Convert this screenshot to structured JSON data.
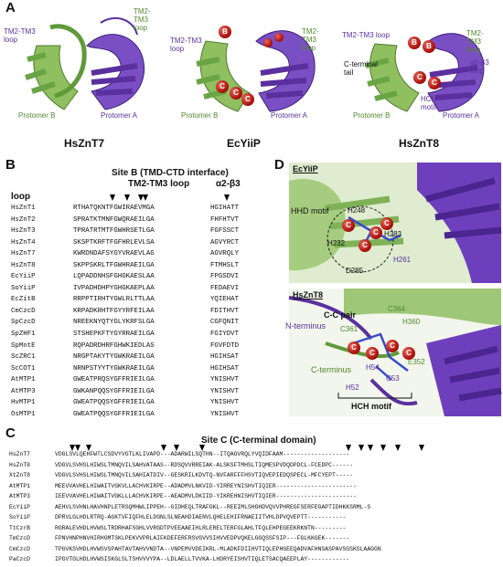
{
  "panels": {
    "A": "A",
    "B": "B",
    "C": "C",
    "D": "D"
  },
  "panelA": {
    "structures": [
      {
        "name": "HsZnT7",
        "labels": {
          "tm23_left": "TM2-TM3\nloop",
          "tm23_right": "TM2-\nTM3\nloop",
          "protomer_b": "Protomer B",
          "protomer_a": "Protomer A"
        }
      },
      {
        "name": "EcYiiP",
        "labels": {
          "tm23_left": "TM2-TM3\nloop",
          "tm23_right": "TM2-\nTM3\nloop",
          "protomer_b": "Protomer B",
          "protomer_a": "Protomer A"
        }
      },
      {
        "name": "HsZnT8",
        "labels": {
          "tm23_left": "TM2-TM3 loop",
          "tm23_right": "TM2-\nTM3\nloop",
          "a2b3": "α2-β3\nloop",
          "cterm": "C-terminal\ntail",
          "hch": "HCH\nmotif",
          "protomer_b": "Protomer B",
          "protomer_a": "Protomer A"
        }
      }
    ]
  },
  "panelB": {
    "title": "Site B (TMD-CTD interface)",
    "subtitle": "TM2-TM3 loop",
    "col_loop": "loop",
    "col_a2b3": "α2-β3",
    "rows": [
      {
        "name": "HsZnT1",
        "seq": "RTHATQKNTFGWIRAEVMGA",
        "tail": "HGIHATT"
      },
      {
        "name": "HsZnT2",
        "seq": "SPRATKTMNFGWQRAEILGA",
        "tail": "FHFHTVT"
      },
      {
        "name": "HsZnT3",
        "seq": "TPRATRTMTFGWHRSETLGA",
        "tail": "FGFSSCT"
      },
      {
        "name": "HsZnT4",
        "seq": "SKSPTKRFTFGFHRLEVLSA",
        "tail": "AGVYRCT"
      },
      {
        "name": "HsZnT7",
        "seq": "KWRDNDAFSYGYVRAEVLAG",
        "tail": "AGVRQLY"
      },
      {
        "name": "HsZnT8",
        "seq": "SKPPSKRLTFGWHRAEILGA",
        "tail": "FTMHSLT"
      },
      {
        "name": "EcYiiP",
        "seq": "LQPADDNHSFGHGKAESLAA",
        "tail": "FPGSDVI"
      },
      {
        "name": "SoYiiP",
        "seq": "IVPADHDHPYGHGKAEPLAA",
        "tail": "FEDAEVI"
      },
      {
        "name": "EcZitB",
        "seq": "RRPPTIRHTYGWLRLTTLAA",
        "tail": "YQIEHAT"
      },
      {
        "name": "CmCzcD",
        "seq": "KRPADKRHTFGYYRFEILAA",
        "tail": "FDITHVT"
      },
      {
        "name": "SpCzcD",
        "seq": "NREEKNYQTYGLYKRFSLGA",
        "tail": "CGFQNIT"
      },
      {
        "name": "SpZHF1",
        "seq": "STSHEPKFTYGYRRAEILGA",
        "tail": "FGIYDVT"
      },
      {
        "name": "SpMntE",
        "seq": "RQPADRDHRFGHWKIEDLAS",
        "tail": "FGVFDTD"
      },
      {
        "name": "ScZRC1",
        "seq": "NRGPTAKYTYGWKRAEILGA",
        "tail": "HGIHSAT"
      },
      {
        "name": "ScCOT1",
        "seq": "NRNPSTYYTYGWKRAEILGA",
        "tail": "HGIHSAT"
      },
      {
        "name": "AtMTP1",
        "seq": "GWEATPRQSYGFFRIEILGA",
        "tail": "YNISHVT"
      },
      {
        "name": "AtMTP3",
        "seq": "GWKANPQQSYGFFRIEILGA",
        "tail": "YNISHVT"
      },
      {
        "name": "HvMTP1",
        "seq": "GWEATPQQSYGFFRIEILGA",
        "tail": "YNISHVT"
      },
      {
        "name": "OsMTP1",
        "seq": "GWEATPQQSYGFFRIEILGA",
        "tail": "YNISHVT"
      }
    ]
  },
  "panelC": {
    "title": "Site C (C-terminal domain)",
    "rows": [
      {
        "name": "HsZnT7",
        "seq": "VDGLSVLQEHFWTLCSDVYVGTLKLIVAPD---ADARWILSQTHN--ITQAGVRQLYVQIDFAAM-------------------"
      },
      {
        "name": "HsZnT8",
        "seq": "VDGVLSVHSLHIWSLTMNQVILSAHVATAAS--RDSQVVRREIAK-ALSKSFTMHSLTIQMESPVDQDPDCL-FCEDPC------"
      },
      {
        "name": "XtZnT8",
        "seq": "VDGVLSVHSLHIWSLTMNQVILSAHIATDIV--GESKRILKDVTQ-NVFARFFFHSVTIQVEPIEDQSPECL-MFCYEPT-----"
      },
      {
        "name": "AtMTP1",
        "seq": "MEEVVAVHELHIWAITVGKVLLACHVKIRPE--ADADMVLNKVID-YIRREYNISHVTIQIER-----------------------"
      },
      {
        "name": "AtMTP3",
        "seq": "IEEVVAVHELHIWAITVGKLLLACHVKIRPE--AEADMVLDKIID-YIKREHNISHVTIQIER-----------------------"
      },
      {
        "name": "EcYiiP",
        "seq": "AEHVLSVHNLHAVHNPLETRSQMHWLIPPEH--GIDHEQLTRAFGKL--REEIMLSHGHDVQVVPHREGFSERFEGAPTIDHKKSRML-S"
      },
      {
        "name": "SoYiiP",
        "seq": "DPRVLGLHDLRTRQ-AGKTVFIQFHLELDGNLSLNEAHDIAENVLQHELEHIFRNAEIITVHLDPVQVEPTT-----------"
      },
      {
        "name": "TtCzrB",
        "seq": "RGRALEVHDLHVWSLTRDRHAFSGHLVVRGDTPVEEAAEIHLRLERELTERFGLAHLTFQLEHPEGEEKRKNTN---------"
      },
      {
        "name": "TmCzcD",
        "seq": "FPNVHNPHNVHIRHGMTSKLPEKVVPRLAIFKDEFERFRSVGVVSIHVVEDPVQKELGGQSSFSIP---FGLKKGEK-------"
      },
      {
        "name": "CmCzcD",
        "seq": "TPGVKSVHDLHVWSVSPAHTAVTAHVVNDTA--VNPEMVVDEIKRL-MLADKFDIIHVTIQLEPHGEEQADVAFHNSASPAVSGSKSLAAGGN"
      },
      {
        "name": "PaCzcD",
        "seq": "IPGVTGLHDLHVWSISKGLSLTSHVVVYPA--LDLAELLTVVKA-LHDRYEISHVTIQLETSACQAEEPLAY------------"
      }
    ]
  },
  "panelD": {
    "top": {
      "species": "EcYiiP",
      "motif": "HHD motif",
      "residues": [
        "H248",
        "H261",
        "D285",
        "H232",
        "H283"
      ]
    },
    "bottom": {
      "species": "HsZnT8",
      "pair": "C-C pair",
      "residues": [
        "C364",
        "C361",
        "H360",
        "H52",
        "H54",
        "C53",
        "E352"
      ],
      "nterm": "N-terminus",
      "cterm": "C-terminus",
      "motif": "HCH motif"
    }
  },
  "ball_label": "C",
  "ball_label_b": "B",
  "colors": {
    "green": "#4f8a2e",
    "purple": "#5a2f9e",
    "hl_green": "#9bd06b",
    "hl_blue": "#7c8fe0"
  }
}
